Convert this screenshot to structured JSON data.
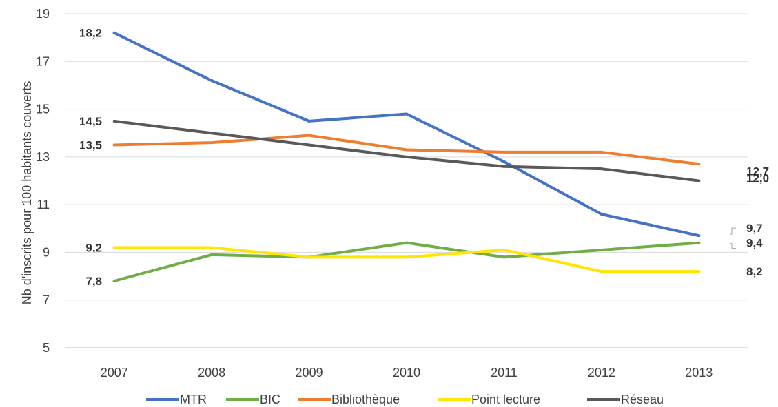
{
  "chart_data": {
    "type": "line",
    "title": "",
    "xlabel": "",
    "ylabel": "Nb d'inscrits pour 100 habitants couverts",
    "categories": [
      "2007",
      "2008",
      "2009",
      "2010",
      "2011",
      "2012",
      "2013"
    ],
    "yticks": [
      "5",
      "7",
      "9",
      "11",
      "13",
      "15",
      "17",
      "19"
    ],
    "ylim": [
      5,
      19
    ],
    "grid": "horizontal",
    "legend_position": "bottom",
    "series": [
      {
        "name": "MTR",
        "color": "#4472C4",
        "values": [
          18.2,
          16.2,
          14.5,
          14.8,
          12.8,
          10.6,
          9.7
        ],
        "labels": {
          "start": "18,2",
          "end": "9,7"
        }
      },
      {
        "name": "BIC",
        "color": "#70AD47",
        "values": [
          7.8,
          8.9,
          8.8,
          9.4,
          8.8,
          9.1,
          9.4
        ],
        "labels": {
          "start": "7,8",
          "end": "9,4"
        }
      },
      {
        "name": "Bibliothèque",
        "color": "#ED7D31",
        "values": [
          13.5,
          13.6,
          13.9,
          13.3,
          13.2,
          13.2,
          12.7
        ],
        "labels": {
          "start": "13,5",
          "end": "12,7"
        }
      },
      {
        "name": "Point lecture",
        "color": "#FFE500",
        "values": [
          9.2,
          9.2,
          8.8,
          8.8,
          9.1,
          8.2,
          8.2
        ],
        "labels": {
          "start": "9,2",
          "end": "8,2"
        }
      },
      {
        "name": "Réseau",
        "color": "#595959",
        "values": [
          14.5,
          14.0,
          13.5,
          13.0,
          12.6,
          12.5,
          12.0
        ],
        "labels": {
          "start": "14,5",
          "end": "12,0"
        }
      }
    ]
  }
}
